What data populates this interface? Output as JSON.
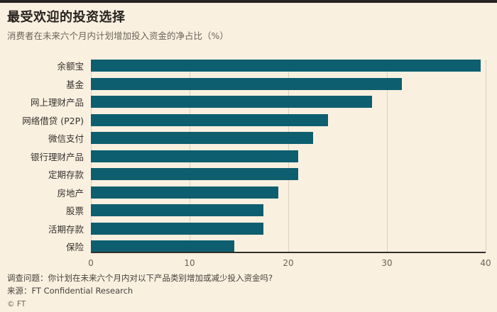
{
  "chart_data": {
    "type": "bar",
    "orientation": "horizontal",
    "title": "最受欢迎的投资选择",
    "subtitle": "消费者在未来六个月内计划增加投入资金的净占比（%）",
    "categories": [
      "余额宝",
      "基金",
      "网上理财产品",
      "网络借贷 (P2P)",
      "微信支付",
      "银行理财产品",
      "定期存款",
      "房地产",
      "股票",
      "活期存款",
      "保险"
    ],
    "values": [
      39.5,
      31.5,
      28.5,
      24,
      22.5,
      21,
      21,
      19,
      17.5,
      17.5,
      14.5
    ],
    "xlabel": "",
    "ylabel": "",
    "xlim": [
      0,
      40
    ],
    "xticks": [
      0,
      10,
      20,
      30,
      40
    ],
    "grid": "vertical",
    "legend": "none"
  },
  "footer": {
    "question": "调查问题：你计划在未来六个月内对以下产品类别增加或减少投入资金吗?",
    "source": "来源：FT Confidential Research",
    "copyright": "© FT"
  },
  "colors": {
    "bar": "#0d5e6e",
    "background": "#faf0e0",
    "grid": "#ddd1bf",
    "axis": "#33302c",
    "text_dark": "#33302c",
    "text_muted": "#6b635a"
  }
}
